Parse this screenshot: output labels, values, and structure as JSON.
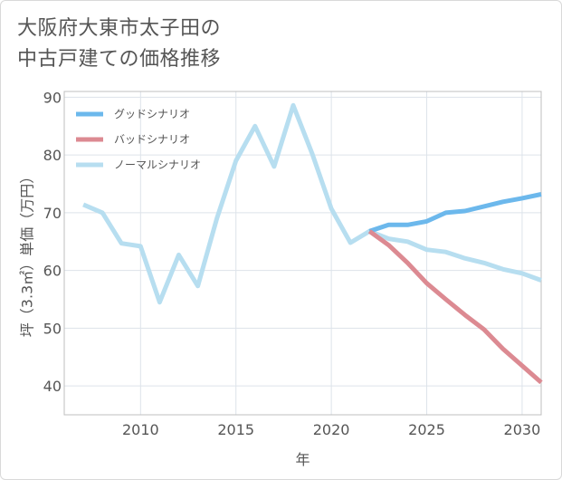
{
  "title_line1": "大阪府大東市太子田の",
  "title_line2": "中古戸建ての価格推移",
  "chart_data": {
    "type": "line",
    "title": "大阪府大東市太子田の中古戸建ての価格推移",
    "xlabel": "年",
    "ylabel": "坪（3.3㎡）単価（万円）",
    "xlim": [
      2006,
      2031
    ],
    "ylim": [
      35,
      91
    ],
    "xticks": [
      2010,
      2015,
      2020,
      2025,
      2030
    ],
    "yticks": [
      40,
      50,
      60,
      70,
      80,
      90
    ],
    "grid": true,
    "legend_position": "top-left",
    "series": [
      {
        "name": "グッドシナリオ",
        "color": "#6cb8ec",
        "x": [
          2022,
          2023,
          2024,
          2025,
          2026,
          2027,
          2028,
          2029,
          2030,
          2031
        ],
        "values": [
          66.8,
          67.9,
          67.9,
          68.5,
          70.0,
          70.3,
          71.1,
          71.9,
          72.5,
          73.2
        ]
      },
      {
        "name": "バッドシナリオ",
        "color": "#dc8a92",
        "x": [
          2022,
          2023,
          2024,
          2025,
          2026,
          2027,
          2028,
          2029,
          2030,
          2031
        ],
        "values": [
          66.8,
          64.4,
          61.3,
          57.8,
          55.0,
          52.3,
          49.8,
          46.4,
          43.5,
          40.6
        ]
      },
      {
        "name": "ノーマルシナリオ",
        "color": "#b7def0",
        "x": [
          2007,
          2008,
          2009,
          2010,
          2011,
          2012,
          2013,
          2014,
          2015,
          2016,
          2017,
          2018,
          2019,
          2020,
          2021,
          2022,
          2023,
          2024,
          2025,
          2026,
          2027,
          2028,
          2029,
          2030,
          2031
        ],
        "values": [
          71.4,
          70.0,
          64.7,
          64.2,
          54.5,
          62.7,
          57.3,
          69.0,
          79.0,
          85.0,
          78.0,
          88.6,
          80.2,
          70.7,
          64.8,
          66.8,
          65.5,
          65.0,
          63.6,
          63.2,
          62.1,
          61.3,
          60.2,
          59.5,
          58.3
        ]
      }
    ]
  }
}
